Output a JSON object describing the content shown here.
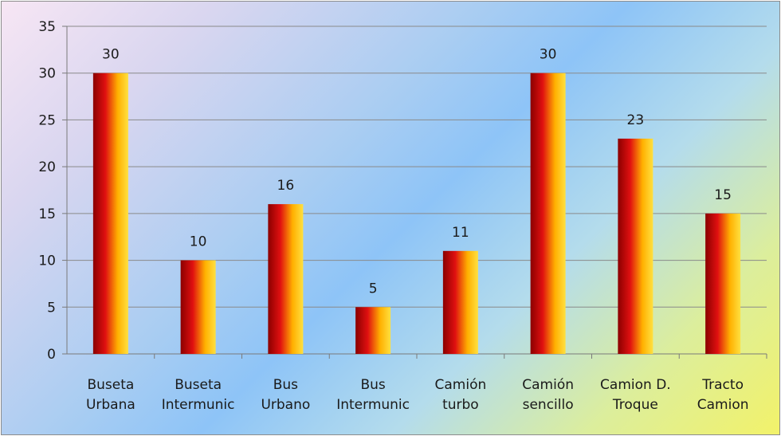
{
  "chart_data": {
    "type": "bar",
    "title": "",
    "xlabel": "",
    "ylabel": "",
    "categories": [
      [
        "Buseta",
        "Urbana"
      ],
      [
        "Buseta",
        "Intermunic"
      ],
      [
        "Bus",
        "Urbano"
      ],
      [
        "Bus",
        "Intermunic"
      ],
      [
        "Camión",
        "turbo"
      ],
      [
        "Camión",
        "sencillo"
      ],
      [
        "Camion D.",
        "Troque"
      ],
      [
        "Tracto",
        "Camion"
      ]
    ],
    "values": [
      30,
      10,
      16,
      5,
      11,
      30,
      23,
      15
    ],
    "ylim": [
      0,
      35
    ],
    "yticks": [
      0,
      5,
      10,
      15,
      20,
      25,
      30,
      35
    ],
    "grid": true,
    "legend": "none",
    "data_labels": true,
    "colors": {
      "bar_dark": "#8b0000",
      "bar_mid": "#e01010",
      "bar_light": "#ffb000",
      "bar_highlight": "#ffe040",
      "grid": "#8a8a8a",
      "axis": "#7a7a7a"
    }
  }
}
